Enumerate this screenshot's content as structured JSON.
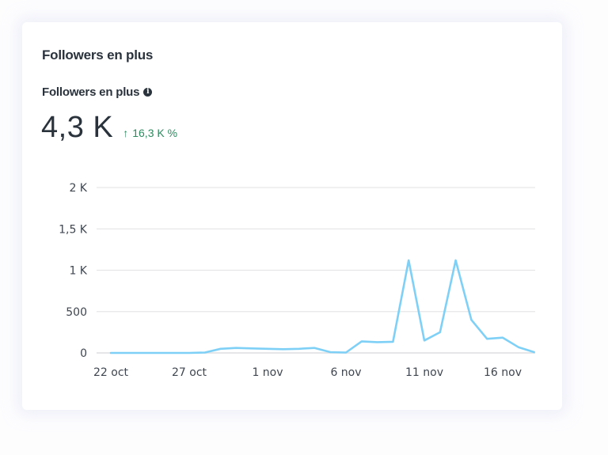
{
  "card": {
    "title": "Followers en plus",
    "metric": {
      "label": "Followers en plus",
      "info_icon": "info-icon",
      "value": "4,3 K",
      "change_arrow": "↑",
      "change": "16,3 K %",
      "change_color": "#2e8a5f"
    }
  },
  "chart_data": {
    "type": "line",
    "title": "Followers en plus",
    "xlabel": "",
    "ylabel": "",
    "ylim": [
      0,
      2000
    ],
    "grid": true,
    "legend": "none",
    "line_color": "#7fd0f7",
    "y_ticks": [
      {
        "value": 0,
        "label": "0"
      },
      {
        "value": 500,
        "label": "500"
      },
      {
        "value": 1000,
        "label": "1 K"
      },
      {
        "value": 1500,
        "label": "1,5 K"
      },
      {
        "value": 2000,
        "label": "2 K"
      }
    ],
    "x_tick_labels": [
      {
        "index": 0,
        "label": "22 oct"
      },
      {
        "index": 5,
        "label": "27 oct"
      },
      {
        "index": 10,
        "label": "1 nov"
      },
      {
        "index": 15,
        "label": "6 nov"
      },
      {
        "index": 20,
        "label": "11 nov"
      },
      {
        "index": 25,
        "label": "16 nov"
      }
    ],
    "x": [
      "22 oct",
      "23 oct",
      "24 oct",
      "25 oct",
      "26 oct",
      "27 oct",
      "28 oct",
      "29 oct",
      "30 oct",
      "31 oct",
      "1 nov",
      "2 nov",
      "3 nov",
      "4 nov",
      "5 nov",
      "6 nov",
      "7 nov",
      "8 nov",
      "9 nov",
      "10 nov",
      "11 nov",
      "12 nov",
      "13 nov",
      "14 nov",
      "15 nov",
      "16 nov",
      "17 nov",
      "18 nov"
    ],
    "series": [
      {
        "name": "Followers en plus",
        "values": [
          0,
          0,
          0,
          0,
          0,
          0,
          5,
          50,
          60,
          55,
          50,
          45,
          50,
          60,
          10,
          5,
          140,
          130,
          135,
          1120,
          150,
          250,
          1120,
          400,
          170,
          185,
          70,
          10
        ]
      }
    ]
  }
}
